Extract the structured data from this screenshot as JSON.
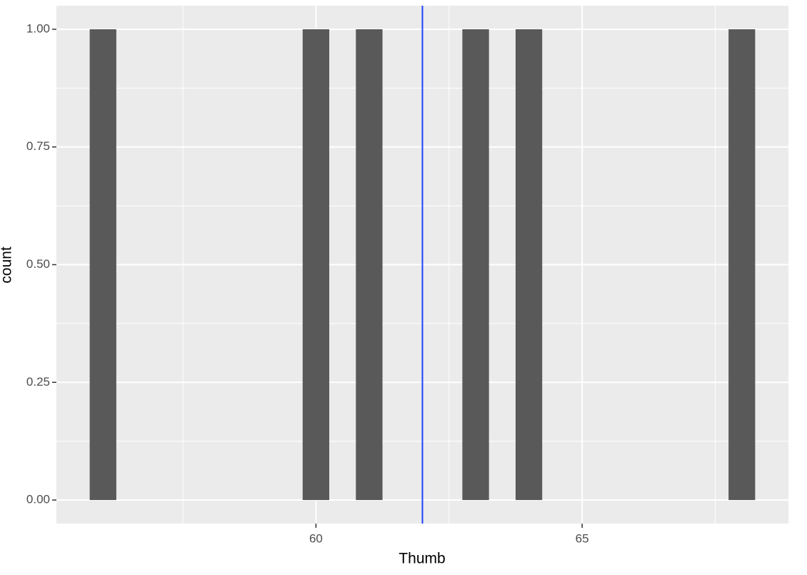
{
  "chart_data": {
    "type": "histogram",
    "x_label": "Thumb",
    "y_label": "count",
    "bins": [
      55.75,
      56.25,
      56.75,
      57.25,
      57.75,
      58.25,
      58.75,
      59.25,
      59.75,
      60.25,
      60.75,
      61.25,
      61.75,
      62.25,
      62.75,
      63.25,
      63.75,
      64.25,
      64.75,
      65.25,
      65.75,
      66.25,
      66.75,
      67.25,
      67.75,
      68.25
    ],
    "values": [
      1,
      0,
      0,
      0,
      0,
      0,
      0,
      0,
      1,
      0,
      1,
      0,
      0,
      0,
      1,
      0,
      1,
      0,
      0,
      0,
      0,
      0,
      0,
      0,
      1
    ],
    "color": "#595959",
    "xlim": [
      55.125,
      68.875
    ],
    "xticks": [
      60,
      65
    ],
    "xminor": [
      57.5,
      62.5,
      67.5
    ],
    "ylim": [
      -0.05,
      1.05
    ],
    "yticks": [
      {
        "value": 0,
        "label": "0.00"
      },
      {
        "value": 0.25,
        "label": "0.25"
      },
      {
        "value": 0.5,
        "label": "0.50"
      },
      {
        "value": 0.75,
        "label": "0.75"
      },
      {
        "value": 1,
        "label": "1.00"
      }
    ],
    "yminor": [
      0.125,
      0.375,
      0.625,
      0.875
    ],
    "grid": true,
    "vline": {
      "value": 62,
      "color": "#1f3fff"
    }
  }
}
